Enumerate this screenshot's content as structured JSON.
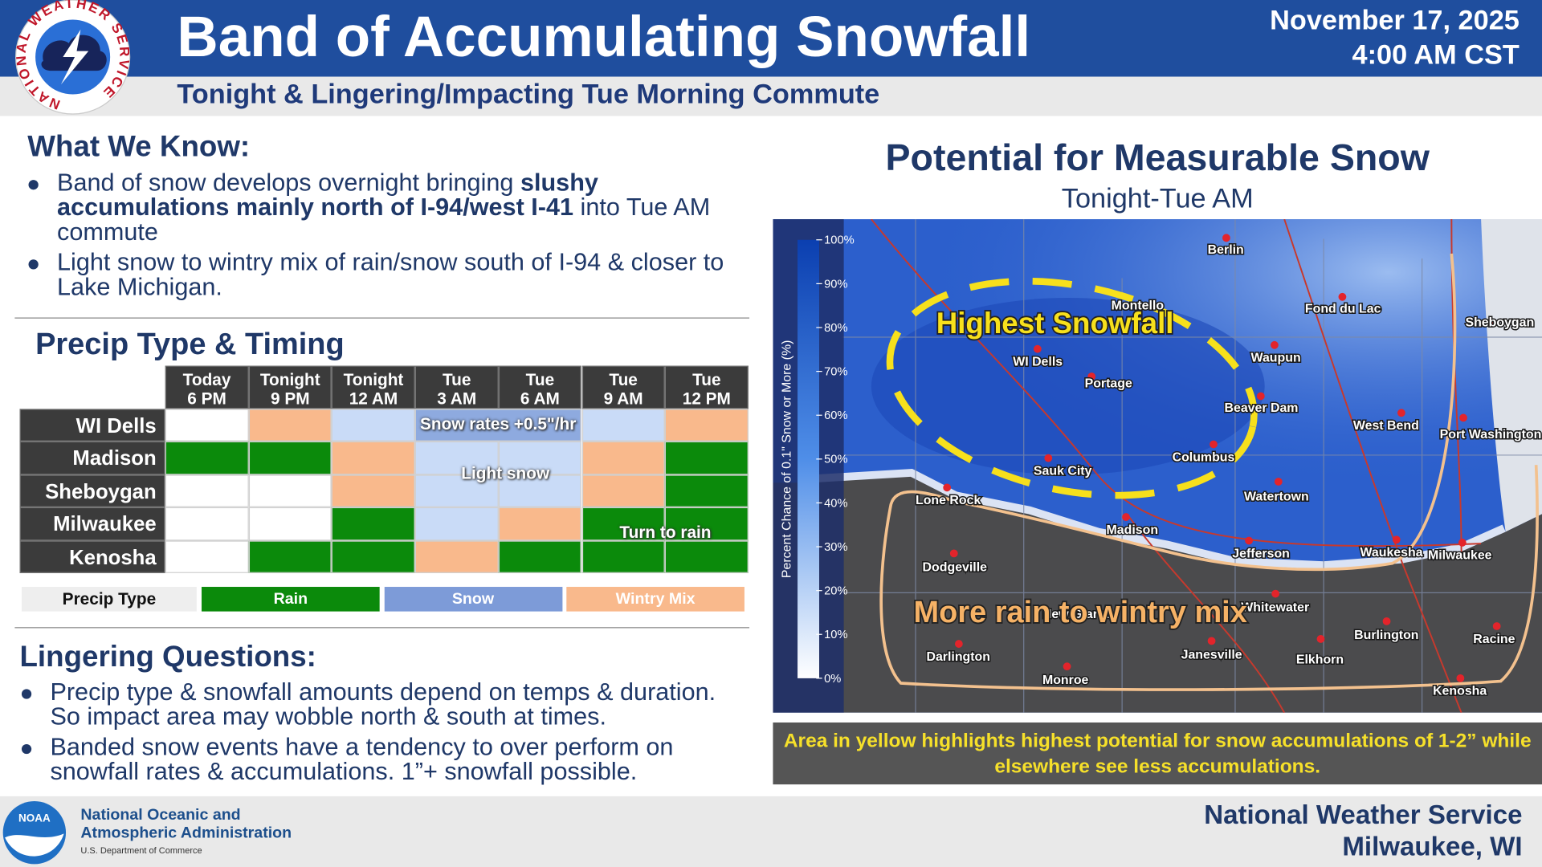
{
  "header": {
    "logo_text": "NATIONAL WEATHER SERVICE",
    "title": "Band of Accumulating Snowfall",
    "subtitle": "Tonight & Lingering/Impacting Tue Morning Commute",
    "date": "November 17, 2025",
    "time": "4:00 AM CST"
  },
  "know": {
    "heading": "What We Know:",
    "bullets": [
      [
        {
          "text": "Band of snow develops overnight bringing ",
          "bold": false
        },
        {
          "text": "slushy accumulations mainly north of I-94/west I-41",
          "bold": true
        },
        {
          "text": " into Tue AM commute",
          "bold": false
        }
      ],
      [
        {
          "text": "Light snow to wintry mix of rain/snow south of I-94 & closer to Lake Michigan.",
          "bold": false
        }
      ]
    ]
  },
  "timing": {
    "heading": "Precip Type & Timing",
    "columns": [
      {
        "day": "Today",
        "time": "6 PM"
      },
      {
        "day": "Tonight",
        "time": "9 PM"
      },
      {
        "day": "Tonight",
        "time": "12 AM"
      },
      {
        "day": "Tue",
        "time": "3 AM"
      },
      {
        "day": "Tue",
        "time": "6 AM"
      },
      {
        "day": "Tue",
        "time": "9 AM"
      },
      {
        "day": "Tue",
        "time": "12 PM"
      }
    ],
    "rows": [
      {
        "name": "WI Dells",
        "cells": [
          null,
          "mix",
          "snow",
          "snow",
          "snow",
          "snow",
          "mix"
        ]
      },
      {
        "name": "Madison",
        "cells": [
          "rain",
          "rain",
          "mix",
          "snow",
          "snow",
          "mix",
          "rain"
        ]
      },
      {
        "name": "Sheboygan",
        "cells": [
          null,
          null,
          "mix",
          "snow",
          "snow",
          "mix",
          "rain"
        ]
      },
      {
        "name": "Milwaukee",
        "cells": [
          null,
          null,
          "rain",
          "snow",
          "mix",
          "rain",
          "rain"
        ]
      },
      {
        "name": "Kenosha",
        "cells": [
          null,
          "rain",
          "rain",
          "mix",
          "rain",
          "rain",
          "rain"
        ]
      }
    ],
    "notes": [
      "Snow rates +0.5\"/hr",
      "Light snow",
      "Turn to rain"
    ],
    "legend": {
      "label": "Precip Type",
      "items": [
        {
          "code": "rain",
          "name": "Rain",
          "color": "#0b8a0b",
          "cell_color": "#0b8a0b"
        },
        {
          "code": "snow",
          "name": "Snow",
          "color": "#7d9bd8",
          "cell_color": "#c9dbf7"
        },
        {
          "code": "mix",
          "name": "Wintry Mix",
          "color": "#f9b98c",
          "cell_color": "#f9b98c"
        }
      ]
    }
  },
  "lingering": {
    "heading": "Lingering Questions:",
    "bullets": [
      "Precip type & snowfall amounts depend on temps & duration. So impact area may wobble north & south at times.",
      "Banded snow events have a tendency to over perform on snowfall rates & accumulations. 1”+ snowfall possible."
    ]
  },
  "map": {
    "title": "Potential for Measurable Snow",
    "subtitle": "Tonight-Tue AM",
    "colorbar": {
      "label": "Percent Chance of 0.1\" Snow or More (%)",
      "range": [
        0,
        100
      ],
      "ticks": [
        {
          "value": 100,
          "label": "100%"
        },
        {
          "value": 90,
          "label": "90%"
        },
        {
          "value": 80,
          "label": "80%"
        },
        {
          "value": 70,
          "label": "70%"
        },
        {
          "value": 60,
          "label": "60%"
        },
        {
          "value": 50,
          "label": "50%"
        },
        {
          "value": 40,
          "label": "40%"
        },
        {
          "value": 30,
          "label": "30%"
        },
        {
          "value": 20,
          "label": "20%"
        },
        {
          "value": 10,
          "label": "10%"
        },
        {
          "value": 0,
          "label": "0%"
        }
      ]
    },
    "cities": [
      "Berlin",
      "Montello",
      "Fond du Lac",
      "Sheboygan",
      "WI Dells",
      "Waupun",
      "Portage",
      "Beaver Dam",
      "West Bend",
      "Port Washington",
      "Columbus",
      "Sauk City",
      "Watertown",
      "Lone Rock",
      "Madison",
      "Jefferson",
      "Waukesha",
      "Milwaukee",
      "Dodgeville",
      "Whitewater",
      "New Glarus",
      "Burlington",
      "Racine",
      "Darlington",
      "Janesville",
      "Elkhorn",
      "Monroe",
      "Kenosha"
    ],
    "snow_label": "Highest Snowfall",
    "rain_label": "More rain to wintry mix",
    "caption": "Area in yellow highlights highest potential for snow accumulations of 1-2” while elsewhere see less accumulations."
  },
  "footer": {
    "noaa_logo": "NOAA",
    "agency_line1": "National Oceanic and",
    "agency_line2": "Atmospheric Administration",
    "department": "U.S. Department of Commerce",
    "office_line1": "National Weather Service",
    "office_line2": "Milwaukee, WI"
  }
}
